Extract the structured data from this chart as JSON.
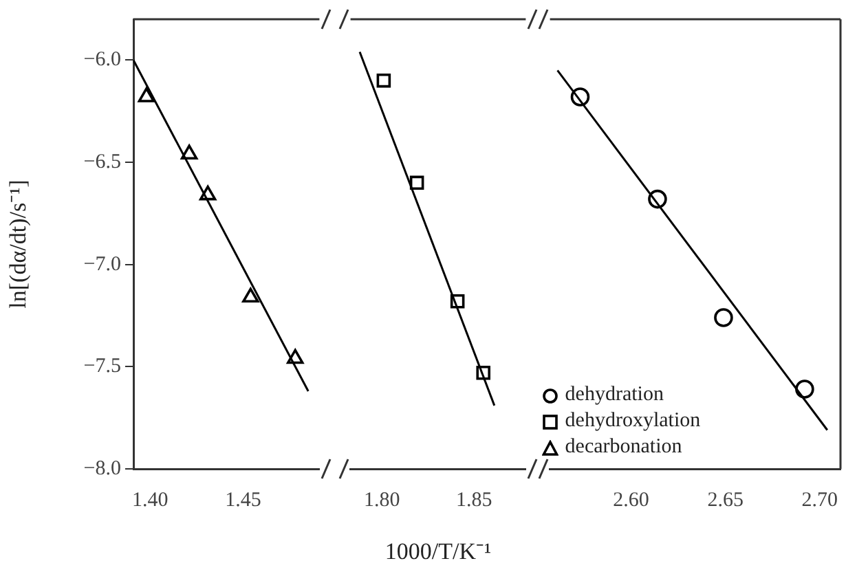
{
  "chart_data": [
    {
      "type": "scatter",
      "ylabel": "ln[(dα/dt)/s⁻¹]",
      "xlim": [
        1.391,
        1.491
      ],
      "xticks": [
        {
          "value": 1.4,
          "label": "1.40"
        },
        {
          "value": 1.45,
          "label": "1.45"
        }
      ],
      "ylim": [
        -8.0,
        -5.8
      ],
      "yticks": [
        {
          "value": -8,
          "label": "−8.0"
        },
        {
          "value": -7.5,
          "label": "−7.5"
        },
        {
          "value": -7,
          "label": "−7.0"
        },
        {
          "value": -6.5,
          "label": "−6.5"
        },
        {
          "value": -6,
          "label": "−6.0"
        }
      ],
      "grid": false,
      "legend": false,
      "series": [
        {
          "name": "decarbonation",
          "color": "#000000",
          "marker": "triangle",
          "x": [
            1.398,
            1.421,
            1.431,
            1.454,
            1.478
          ],
          "values": [
            -6.18,
            -6.46,
            -6.66,
            -7.16,
            -7.46
          ]
        },
        {
          "type": "line",
          "color": "#000000",
          "marker": "none",
          "x": [
            1.391,
            1.485
          ],
          "values": [
            -6.0,
            -7.62
          ]
        }
      ]
    },
    {
      "type": "scatter",
      "xlabel": "1000/T/K⁻¹",
      "xlim": [
        1.783,
        1.878
      ],
      "xticks": [
        {
          "value": 1.8,
          "label": "1.80"
        },
        {
          "value": 1.85,
          "label": "1.85"
        }
      ],
      "ylim": [
        -8.0,
        -5.8
      ],
      "tick_labels": "x",
      "grid": false,
      "legend": false,
      "series": [
        {
          "name": "dehydroxylation",
          "color": "#000000",
          "marker": "square",
          "x": [
            1.801,
            1.819,
            1.841,
            1.855
          ],
          "values": [
            -6.1,
            -6.6,
            -7.18,
            -7.53
          ]
        },
        {
          "type": "line",
          "color": "#000000",
          "marker": "none",
          "x": [
            1.788,
            1.861
          ],
          "values": [
            -5.96,
            -7.69
          ]
        }
      ]
    },
    {
      "type": "scatter",
      "xlim": [
        2.557,
        2.711
      ],
      "xticks": [
        {
          "value": 2.6,
          "label": "2.60"
        },
        {
          "value": 2.65,
          "label": "2.65"
        },
        {
          "value": 2.7,
          "label": "2.70"
        }
      ],
      "ylim": [
        -8.0,
        -5.8
      ],
      "tick_labels": "x",
      "grid": false,
      "legend": "bottom left",
      "series": [
        {
          "name": "dehydration",
          "color": "#000000",
          "marker": "circle",
          "x": [
            2.573,
            2.614,
            2.649,
            2.692
          ],
          "values": [
            -6.18,
            -6.68,
            -7.26,
            -7.61
          ]
        },
        {
          "type": "line",
          "color": "#000000",
          "marker": "none",
          "x": [
            2.561,
            2.704
          ],
          "values": [
            -6.05,
            -7.81
          ]
        }
      ]
    }
  ]
}
